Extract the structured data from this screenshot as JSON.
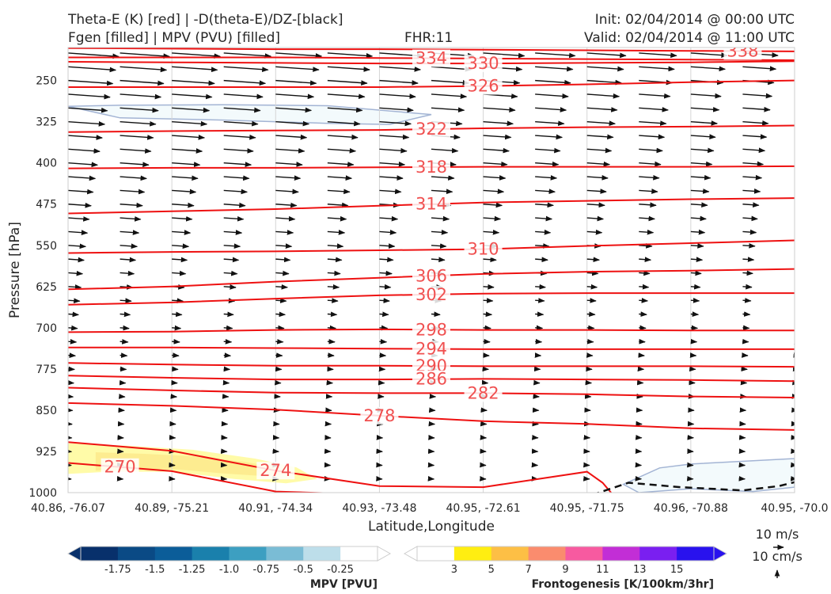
{
  "header": {
    "title_line1": "Theta-E (K) [red] | -D(theta-E)/DZ-[black]",
    "title_line2": "Fgen [filled] | MPV (PVU) [filled]",
    "fhr": "FHR:11",
    "init": "Init: 02/04/2014 @ 00:00 UTC",
    "valid": "Valid: 02/04/2014 @ 11:00 UTC"
  },
  "chart_data": {
    "type": "contour",
    "ylabel": "Pressure [hPa]",
    "xlabel": "Latitude,Longitude",
    "y_axis": {
      "ticks": [
        250,
        325,
        400,
        475,
        550,
        625,
        700,
        775,
        850,
        925,
        1000
      ],
      "range": [
        190,
        1000
      ],
      "inverted": true
    },
    "x_axis": {
      "ticks": [
        "40.86, -76.07",
        "40.89, -75.21",
        "40.91, -74.34",
        "40.93, -73.48",
        "40.95, -72.61",
        "40.95, -71.75",
        "40.96, -70.88",
        "40.95, -70.0"
      ],
      "range": [
        0,
        7
      ]
    },
    "grid": true,
    "theta_e_contours": [
      {
        "level": "338",
        "label_x": 6.5,
        "points": [
          [
            0,
            191
          ],
          [
            1,
            192
          ],
          [
            2,
            193
          ],
          [
            3,
            193
          ],
          [
            4,
            194
          ],
          [
            5,
            195
          ],
          [
            6,
            196
          ],
          [
            7,
            197
          ]
        ]
      },
      {
        "level": "334",
        "label_x": 3.5,
        "points": [
          [
            0,
            208
          ],
          [
            1,
            208
          ],
          [
            2,
            208
          ],
          [
            3,
            209
          ],
          [
            4,
            210
          ],
          [
            5,
            211
          ],
          [
            6,
            212
          ],
          [
            7,
            213
          ]
        ]
      },
      {
        "level": "330",
        "label_x": 4.0,
        "points": [
          [
            0,
            216
          ],
          [
            1,
            217
          ],
          [
            2,
            218
          ],
          [
            3,
            219
          ],
          [
            4,
            219
          ],
          [
            5,
            218
          ],
          [
            6,
            217
          ],
          [
            7,
            215
          ]
        ]
      },
      {
        "level": "326",
        "label_x": 4.0,
        "points": [
          [
            0,
            262
          ],
          [
            1,
            262
          ],
          [
            2,
            262
          ],
          [
            3,
            262
          ],
          [
            4,
            260
          ],
          [
            5,
            257
          ],
          [
            6,
            253
          ],
          [
            7,
            250
          ]
        ]
      },
      {
        "level": "322",
        "label_x": 3.5,
        "points": [
          [
            0,
            344
          ],
          [
            1,
            342
          ],
          [
            2,
            341
          ],
          [
            3,
            340
          ],
          [
            4,
            337
          ],
          [
            5,
            335
          ],
          [
            6,
            334
          ],
          [
            7,
            332
          ]
        ]
      },
      {
        "level": "318",
        "label_x": 3.5,
        "points": [
          [
            0,
            410
          ],
          [
            1,
            409
          ],
          [
            2,
            409
          ],
          [
            3,
            408
          ],
          [
            4,
            407
          ],
          [
            5,
            407
          ],
          [
            6,
            407
          ],
          [
            7,
            406
          ]
        ]
      },
      {
        "level": "314",
        "label_x": 3.5,
        "points": [
          [
            0,
            492
          ],
          [
            1,
            488
          ],
          [
            2,
            484
          ],
          [
            3,
            478
          ],
          [
            4,
            472
          ],
          [
            5,
            469
          ],
          [
            6,
            466
          ],
          [
            7,
            464
          ]
        ]
      },
      {
        "level": "310",
        "label_x": 4.0,
        "points": [
          [
            0,
            564
          ],
          [
            1,
            562
          ],
          [
            2,
            561
          ],
          [
            3,
            559
          ],
          [
            4,
            557
          ],
          [
            5,
            551
          ],
          [
            6,
            546
          ],
          [
            7,
            541
          ]
        ]
      },
      {
        "level": "306",
        "label_x": 3.5,
        "points": [
          [
            0,
            630
          ],
          [
            1,
            625
          ],
          [
            2,
            616
          ],
          [
            3,
            609
          ],
          [
            4,
            602
          ],
          [
            5,
            598
          ],
          [
            6,
            596
          ],
          [
            7,
            593
          ]
        ]
      },
      {
        "level": "302",
        "label_x": 3.5,
        "points": [
          [
            0,
            658
          ],
          [
            1,
            654
          ],
          [
            2,
            647
          ],
          [
            3,
            641
          ],
          [
            4,
            638
          ],
          [
            5,
            637
          ],
          [
            6,
            637
          ],
          [
            7,
            637
          ]
        ]
      },
      {
        "level": "298",
        "label_x": 3.5,
        "points": [
          [
            0,
            708
          ],
          [
            1,
            707
          ],
          [
            2,
            704
          ],
          [
            3,
            703
          ],
          [
            4,
            704
          ],
          [
            5,
            704
          ],
          [
            6,
            705
          ],
          [
            7,
            705
          ]
        ]
      },
      {
        "level": "294",
        "label_x": 3.5,
        "points": [
          [
            0,
            736
          ],
          [
            1,
            736
          ],
          [
            2,
            737
          ],
          [
            3,
            738
          ],
          [
            4,
            739
          ],
          [
            5,
            739
          ],
          [
            6,
            739
          ],
          [
            7,
            739
          ]
        ]
      },
      {
        "level": "290",
        "label_x": 3.5,
        "points": [
          [
            0,
            764
          ],
          [
            1,
            767
          ],
          [
            2,
            769
          ],
          [
            3,
            769
          ],
          [
            4,
            770
          ],
          [
            5,
            770
          ],
          [
            6,
            770
          ],
          [
            7,
            771
          ]
        ]
      },
      {
        "level": "286",
        "label_x": 3.5,
        "points": [
          [
            0,
            787
          ],
          [
            1,
            791
          ],
          [
            2,
            794
          ],
          [
            3,
            794
          ],
          [
            4,
            793
          ],
          [
            5,
            794
          ],
          [
            6,
            795
          ],
          [
            7,
            797
          ]
        ]
      },
      {
        "level": "282",
        "label_x": 4.0,
        "points": [
          [
            0,
            809
          ],
          [
            1,
            814
          ],
          [
            2,
            818
          ],
          [
            3,
            819
          ],
          [
            4,
            819
          ],
          [
            5,
            821
          ],
          [
            6,
            825
          ],
          [
            7,
            827
          ]
        ]
      },
      {
        "level": "278",
        "label_x": 3.0,
        "points": [
          [
            0,
            837
          ],
          [
            1,
            842
          ],
          [
            2,
            849
          ],
          [
            3,
            860
          ],
          [
            4,
            870
          ],
          [
            5,
            875
          ],
          [
            6,
            883
          ],
          [
            7,
            886
          ]
        ]
      },
      {
        "level": "274",
        "label_x": 2.0,
        "points": [
          [
            0,
            908
          ],
          [
            1,
            924
          ],
          [
            2,
            960
          ],
          [
            3,
            988
          ],
          [
            4,
            990
          ],
          [
            5,
            962
          ],
          [
            5.15,
            982
          ],
          [
            5.25,
            1004
          ]
        ]
      },
      {
        "level": "270",
        "label_x": 0.5,
        "points": [
          [
            0,
            946
          ],
          [
            1,
            961
          ],
          [
            2,
            998
          ],
          [
            3,
            1004
          ]
        ]
      }
    ],
    "mpv_filled": {
      "upper_region": {
        "level": "-0.25",
        "points": [
          [
            0,
            297
          ],
          [
            0.5,
            295
          ],
          [
            1.5,
            294
          ],
          [
            2.5,
            296
          ],
          [
            3.5,
            312
          ],
          [
            3.1,
            330
          ],
          [
            2.5,
            328
          ],
          [
            1.5,
            322
          ],
          [
            0.5,
            318
          ],
          [
            0,
            297
          ]
        ]
      },
      "lower_region": {
        "level": "-0.25",
        "points": [
          [
            5.35,
            985
          ],
          [
            5.7,
            955
          ],
          [
            6.0,
            948
          ],
          [
            6.6,
            942
          ],
          [
            7,
            938
          ],
          [
            7,
            990
          ],
          [
            6.6,
            998
          ],
          [
            6,
            993
          ],
          [
            5.5,
            1000
          ],
          [
            5.35,
            985
          ]
        ]
      }
    },
    "fgen_filled": {
      "level": "3",
      "points": [
        [
          0,
          910
        ],
        [
          0.6,
          915
        ],
        [
          1.2,
          922
        ],
        [
          1.8,
          938
        ],
        [
          2.2,
          954
        ],
        [
          2.4,
          975
        ],
        [
          2.1,
          983
        ],
        [
          1.6,
          975
        ],
        [
          1.0,
          962
        ],
        [
          0.4,
          962
        ],
        [
          0,
          966
        ]
      ]
    },
    "dtheta_dz_contour": {
      "level": "black dashed",
      "points": [
        [
          5.05,
          1004
        ],
        [
          5.4,
          982
        ],
        [
          5.9,
          990
        ],
        [
          6.5,
          996
        ],
        [
          6.85,
          988
        ],
        [
          7,
          981
        ]
      ]
    },
    "colorbars": [
      {
        "title": "MPV [PVU]",
        "ticks": [
          "-1.75",
          "-1.5",
          "-1.25",
          "-1.0",
          "-0.75",
          "-0.5",
          "-0.25"
        ],
        "colors": [
          "#08306b",
          "#0a4a85",
          "#0b5d99",
          "#1a80ac",
          "#3d9fc1",
          "#7abcd5",
          "#bddeea",
          "#ffffff"
        ]
      },
      {
        "title": "Frontogenesis [K/100km/3hr]",
        "ticks": [
          "3",
          "5",
          "7",
          "9",
          "11",
          "13",
          "15"
        ],
        "colors": [
          "#ffffff",
          "#ffee11",
          "#fdbf45",
          "#fa8c6e",
          "#f75aa0",
          "#c22ed6",
          "#7a1ff0",
          "#2912ee"
        ]
      }
    ],
    "vector_reference": {
      "horizontal": "10 m/s",
      "vertical": "10 cm/s"
    }
  }
}
